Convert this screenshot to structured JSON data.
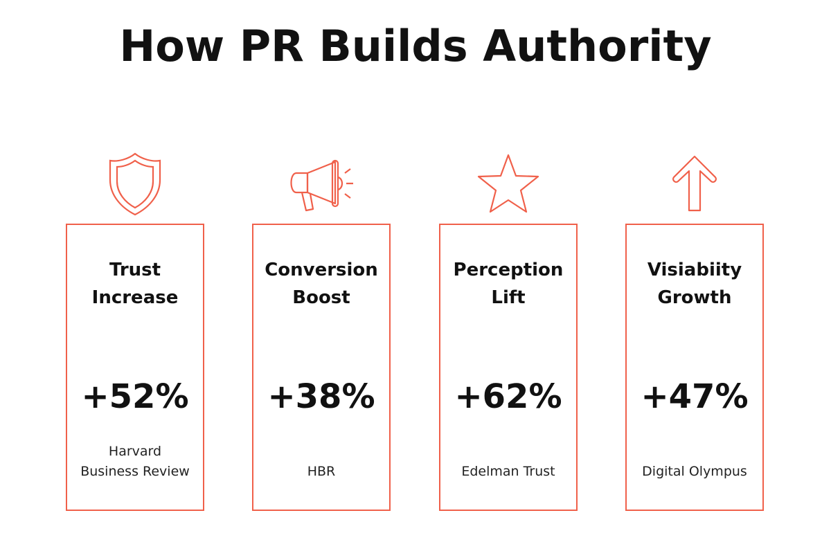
{
  "title": "How PR Builds Authority",
  "accent_color": "#f0604a",
  "cards": [
    {
      "icon": "shield-icon",
      "label_line1": "Trust",
      "label_line2": "Increase",
      "value": "+52%",
      "source_line1": "Harvard",
      "source_line2": "Business Review"
    },
    {
      "icon": "megaphone-icon",
      "label_line1": "Conversion",
      "label_line2": "Boost",
      "value": "+38%",
      "source_line1": "",
      "source_line2": "HBR"
    },
    {
      "icon": "star-icon",
      "label_line1": "Perception",
      "label_line2": "Lift",
      "value": "+62%",
      "source_line1": "",
      "source_line2": "Edelman Trust"
    },
    {
      "icon": "arrow-up-icon",
      "label_line1": "Visiabiity",
      "label_line2": "Growth",
      "value": "+47%",
      "source_line1": "",
      "source_line2": "Digital Olympus"
    }
  ]
}
